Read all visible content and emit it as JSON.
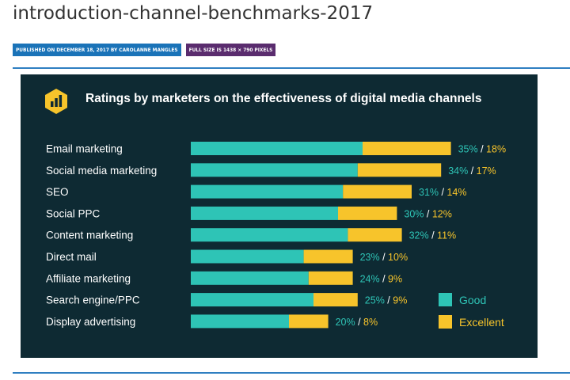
{
  "page": {
    "title": "introduction-channel-benchmarks-2017",
    "published_badge": "PUBLISHED ON DECEMBER 18, 2017 BY CAROLANNE MANGLES",
    "fullsize_badge": "FULL SIZE IS 1438 × 790 PIXELS"
  },
  "figure": {
    "icon": "bar-chart-icon",
    "title": "Ratings by marketers on the effectiveness of digital media channels"
  },
  "colors": {
    "background": "#0e2a33",
    "good": "#2ec4b6",
    "excellent": "#f7c42b",
    "label_text": "#ffffff"
  },
  "chart_data": {
    "type": "bar",
    "orientation": "horizontal",
    "stacked": true,
    "title": "Ratings by marketers on the effectiveness of digital media channels",
    "categories": [
      "Email marketing",
      "Social media marketing",
      "SEO",
      "Social PPC",
      "Content marketing",
      "Direct mail",
      "Affiliate marketing",
      "Search engine/PPC",
      "Display advertising"
    ],
    "series": [
      {
        "name": "Good",
        "values": [
          35,
          34,
          31,
          30,
          32,
          23,
          24,
          25,
          20
        ],
        "color": "#2ec4b6"
      },
      {
        "name": "Excellent",
        "values": [
          18,
          17,
          14,
          12,
          11,
          10,
          9,
          9,
          8
        ],
        "color": "#f7c42b"
      }
    ],
    "data_labels": [
      {
        "good": "35%",
        "excellent": "18%"
      },
      {
        "good": "34%",
        "excellent": "17%"
      },
      {
        "good": "31%",
        "excellent": "14%"
      },
      {
        "good": "30%",
        "excellent": "12%"
      },
      {
        "good": "32%",
        "excellent": "11%"
      },
      {
        "good": "23%",
        "excellent": "10%"
      },
      {
        "good": "24%",
        "excellent": "9%"
      },
      {
        "good": "25%",
        "excellent": "9%"
      },
      {
        "good": "20%",
        "excellent": "8%"
      }
    ],
    "separator": "/",
    "legend": {
      "position": "bottom-right",
      "items": [
        "Good",
        "Excellent"
      ]
    },
    "grid": false
  }
}
